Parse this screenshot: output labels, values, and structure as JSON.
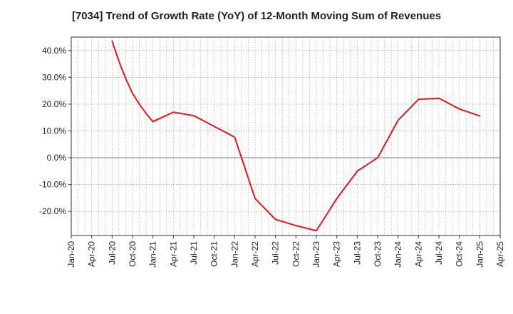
{
  "chart_data": {
    "type": "line",
    "title": "[7034]  Trend of Growth Rate (YoY) of 12-Month Moving Sum of Revenues",
    "xlabel": "",
    "ylabel": "",
    "x_ticks": [
      "Jan-20",
      "Apr-20",
      "Jul-20",
      "Oct-20",
      "Jan-21",
      "Apr-21",
      "Jul-21",
      "Oct-21",
      "Jan-22",
      "Apr-22",
      "Jul-22",
      "Oct-22",
      "Jan-23",
      "Apr-23",
      "Jul-23",
      "Oct-23",
      "Jan-24",
      "Apr-24",
      "Jul-24",
      "Oct-24",
      "Jan-25",
      "Apr-25"
    ],
    "y_ticks": [
      -20,
      -10,
      0,
      10,
      20,
      30,
      40
    ],
    "y_tick_labels": [
      "-20.0%",
      "-10.0%",
      "0.0%",
      "10.0%",
      "20.0%",
      "30.0%",
      "40.0%"
    ],
    "ylim": [
      -29,
      45
    ],
    "xlim": [
      "Jan-20",
      "Apr-25"
    ],
    "grid": true,
    "line_color": "#e8141b",
    "series": [
      {
        "x": [
          "Jul-20",
          "Aug-20",
          "Sep-20",
          "Oct-20",
          "Nov-20",
          "Dec-20",
          "Jan-21",
          "Apr-21",
          "Jul-21",
          "Oct-21",
          "Jan-22",
          "Apr-22",
          "Jul-22",
          "Oct-22",
          "Jan-23",
          "Apr-23",
          "Jul-23",
          "Oct-23",
          "Jan-24",
          "Apr-24",
          "Jul-24",
          "Oct-24",
          "Jan-25"
        ],
        "values": [
          43.5,
          36,
          29.5,
          24,
          20,
          16.5,
          13.5,
          17,
          15.7,
          11.7,
          7.7,
          -15.2,
          -23,
          -25.3,
          -27.2,
          -15.2,
          -5,
          0,
          14,
          21.8,
          22.2,
          18.2,
          15.6
        ]
      }
    ]
  }
}
